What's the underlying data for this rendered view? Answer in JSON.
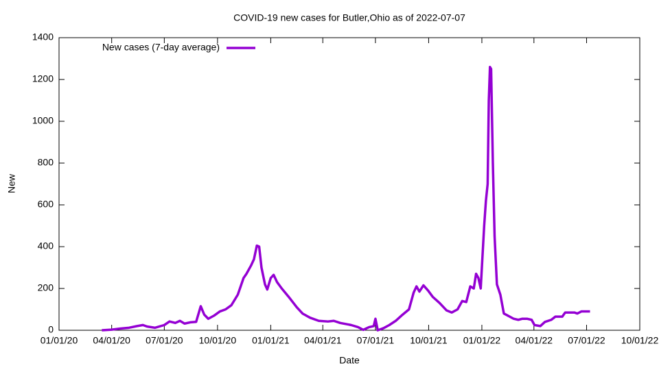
{
  "chart_data": {
    "type": "line",
    "title": "COVID-19 new cases for Butler,Ohio as of 2022-07-07",
    "x_label": "Date",
    "y_label": "New",
    "legend": "top-left",
    "xlim": [
      "2020-01-01",
      "2022-10-01"
    ],
    "xticks": [
      {
        "value": "2020-01-01",
        "label": "01/01/20"
      },
      {
        "value": "2020-04-01",
        "label": "04/01/20"
      },
      {
        "value": "2020-07-01",
        "label": "07/01/20"
      },
      {
        "value": "2020-10-01",
        "label": "10/01/20"
      },
      {
        "value": "2021-01-01",
        "label": "01/01/21"
      },
      {
        "value": "2021-04-01",
        "label": "04/01/21"
      },
      {
        "value": "2021-07-01",
        "label": "07/01/21"
      },
      {
        "value": "2021-10-01",
        "label": "10/01/21"
      },
      {
        "value": "2022-01-01",
        "label": "01/01/22"
      },
      {
        "value": "2022-04-01",
        "label": "04/01/22"
      },
      {
        "value": "2022-07-01",
        "label": "07/01/22"
      },
      {
        "value": "2022-10-01",
        "label": "10/01/22"
      }
    ],
    "ylim": [
      0,
      1400
    ],
    "yticks": [
      0,
      200,
      400,
      600,
      800,
      1000,
      1200,
      1400
    ],
    "x": [
      "2020-03-15",
      "2020-04-01",
      "2020-04-15",
      "2020-05-01",
      "2020-05-15",
      "2020-05-25",
      "2020-06-01",
      "2020-06-15",
      "2020-07-01",
      "2020-07-10",
      "2020-07-20",
      "2020-07-28",
      "2020-08-05",
      "2020-08-15",
      "2020-08-25",
      "2020-09-02",
      "2020-09-08",
      "2020-09-15",
      "2020-09-25",
      "2020-10-05",
      "2020-10-15",
      "2020-10-25",
      "2020-11-05",
      "2020-11-15",
      "2020-11-20",
      "2020-11-28",
      "2020-12-03",
      "2020-12-08",
      "2020-12-12",
      "2020-12-16",
      "2020-12-22",
      "2020-12-26",
      "2021-01-01",
      "2021-01-06",
      "2021-01-12",
      "2021-01-20",
      "2021-02-01",
      "2021-02-15",
      "2021-02-25",
      "2021-03-10",
      "2021-03-25",
      "2021-04-10",
      "2021-04-20",
      "2021-05-01",
      "2021-05-20",
      "2021-06-01",
      "2021-06-10",
      "2021-06-20",
      "2021-06-28",
      "2021-07-01",
      "2021-07-05",
      "2021-07-15",
      "2021-07-25",
      "2021-08-05",
      "2021-08-15",
      "2021-08-28",
      "2021-09-05",
      "2021-09-10",
      "2021-09-15",
      "2021-09-22",
      "2021-09-30",
      "2021-10-08",
      "2021-10-20",
      "2021-11-01",
      "2021-11-10",
      "2021-11-20",
      "2021-11-28",
      "2021-12-05",
      "2021-12-12",
      "2021-12-18",
      "2021-12-22",
      "2021-12-26",
      "2021-12-30",
      "2022-01-02",
      "2022-01-05",
      "2022-01-08",
      "2022-01-11",
      "2022-01-13",
      "2022-01-15",
      "2022-01-17",
      "2022-01-20",
      "2022-01-23",
      "2022-01-27",
      "2022-02-02",
      "2022-02-08",
      "2022-02-15",
      "2022-02-25",
      "2022-03-05",
      "2022-03-12",
      "2022-03-20",
      "2022-03-28",
      "2022-04-02",
      "2022-04-12",
      "2022-04-20",
      "2022-05-01",
      "2022-05-08",
      "2022-05-20",
      "2022-05-25",
      "2022-06-10",
      "2022-06-15",
      "2022-06-22",
      "2022-07-07"
    ],
    "series": [
      {
        "name": "New cases (7-day average)",
        "color": "#9400d3",
        "values": [
          0,
          3,
          8,
          12,
          20,
          25,
          18,
          12,
          25,
          42,
          35,
          45,
          32,
          38,
          40,
          115,
          75,
          55,
          70,
          90,
          100,
          120,
          170,
          250,
          270,
          310,
          340,
          405,
          400,
          300,
          220,
          195,
          250,
          265,
          230,
          200,
          160,
          110,
          80,
          60,
          45,
          42,
          45,
          35,
          25,
          15,
          2,
          15,
          20,
          55,
          0,
          10,
          25,
          45,
          70,
          100,
          180,
          210,
          185,
          215,
          190,
          160,
          130,
          95,
          85,
          100,
          140,
          135,
          210,
          200,
          270,
          250,
          200,
          350,
          500,
          620,
          700,
          1100,
          1260,
          1250,
          800,
          450,
          220,
          170,
          80,
          70,
          55,
          50,
          55,
          55,
          50,
          25,
          20,
          40,
          50,
          65,
          65,
          85,
          85,
          80,
          90,
          90
        ]
      }
    ]
  }
}
